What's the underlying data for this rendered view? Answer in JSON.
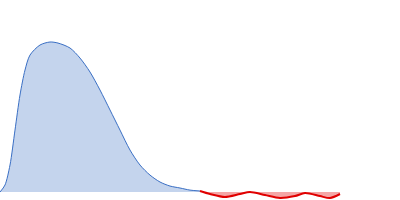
{
  "chart_data": {
    "type": "area",
    "xlim": [
      0,
      100
    ],
    "ylim": [
      -5.3,
      128
    ],
    "tick_labels": false,
    "grid": false,
    "series": [
      {
        "color": "#3a6fc4",
        "x": [
          0,
          1.25,
          2.5,
          3.75,
          5,
          6.25,
          7.5,
          10,
          12.5,
          14.5,
          17.5,
          20,
          22.5,
          25,
          27.5,
          30,
          32.5,
          35,
          37.5,
          40,
          42.5,
          45,
          47.5,
          50
        ],
        "values": [
          0,
          4.7,
          18,
          41.3,
          64.7,
          81.3,
          91.3,
          98,
          100,
          99.3,
          96,
          89.3,
          80,
          68,
          54.7,
          41.3,
          28,
          18,
          11.3,
          6.7,
          4,
          2.7,
          1.3,
          0.7
        ]
      },
      {
        "color": "#e00000",
        "x": [
          50,
          52.5,
          56.25,
          60,
          62.5,
          66.25,
          70,
          73.75,
          76.25,
          80,
          82.5,
          85
        ],
        "values": [
          0.7,
          -1.3,
          -3.3,
          -1.3,
          0,
          -2,
          -4,
          -2.7,
          -0.7,
          -2.7,
          -4,
          -1.3
        ]
      }
    ]
  }
}
